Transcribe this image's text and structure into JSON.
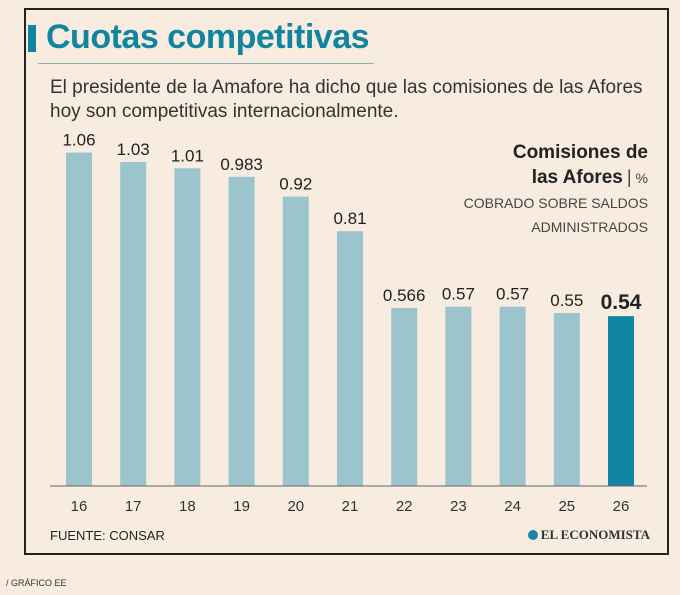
{
  "header": {
    "title": "Cuotas competitivas",
    "subtitle": "El presidente de la Amafore ha dicho que las comisiones de las Afores hoy son competitivas internacionalmente."
  },
  "legend": {
    "line1": "Comisiones de",
    "line2": "las Afores",
    "unit": "%",
    "sub1": "COBRADO SOBRE SALDOS",
    "sub2": "ADMINISTRADOS"
  },
  "footer": {
    "source": "FUENTE: CONSAR",
    "logo": "EL ECONOMISTA",
    "credit": "/ GRÁFICO EE"
  },
  "colors": {
    "bar": "#9cc4cc",
    "highlight": "#0f85a2",
    "title": "#0f85a2"
  },
  "chart_data": {
    "type": "bar",
    "title": "Comisiones de las Afores",
    "xlabel": "",
    "ylabel": "% cobrado sobre saldos administrados",
    "categories": [
      "16",
      "17",
      "18",
      "19",
      "20",
      "21",
      "22",
      "23",
      "24",
      "25",
      "26"
    ],
    "values": [
      1.06,
      1.03,
      1.01,
      0.983,
      0.92,
      0.81,
      0.566,
      0.57,
      0.57,
      0.55,
      0.54
    ],
    "labels": [
      "1.06",
      "1.03",
      "1.01",
      "0.983",
      "0.92",
      "0.81",
      "0.566",
      "0.57",
      "0.57",
      "0.55",
      "0.54"
    ],
    "highlight_index": 10,
    "ylim": [
      0,
      1.1
    ],
    "grid": false
  }
}
